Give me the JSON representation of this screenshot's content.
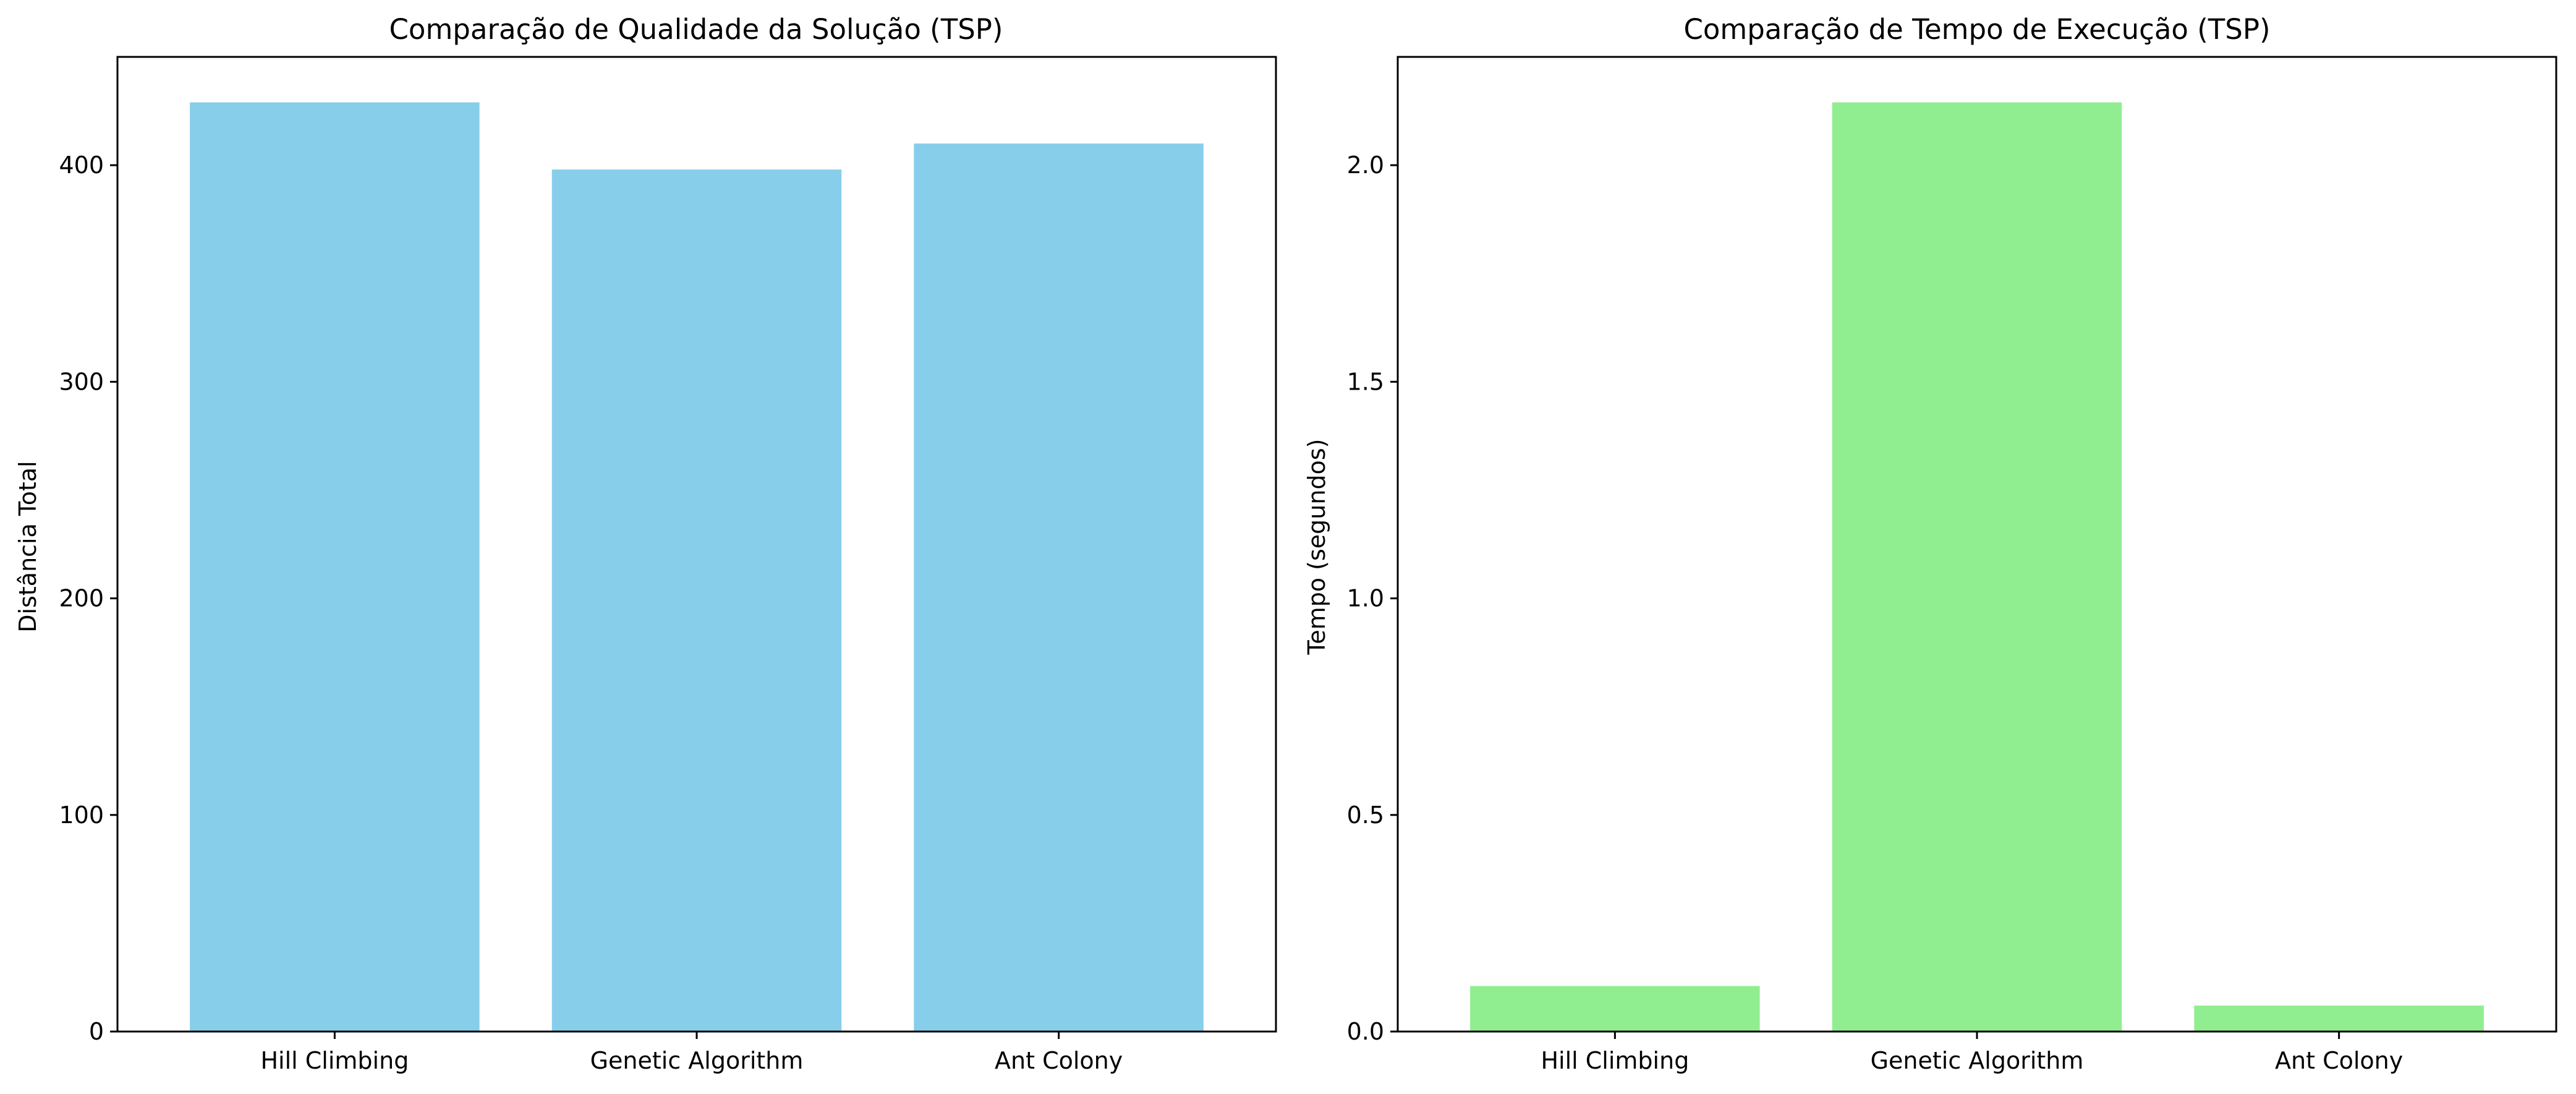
{
  "figure": {
    "background": "#ffffff"
  },
  "chart_data": [
    {
      "type": "bar",
      "title": "Comparação de Qualidade da Solução (TSP)",
      "xlabel": "",
      "ylabel": "Distância Total",
      "categories": [
        "Hill Climbing",
        "Genetic Algorithm",
        "Ant Colony"
      ],
      "values": [
        429,
        398,
        410
      ],
      "ylim": [
        0,
        450
      ],
      "yticks": [
        0,
        100,
        200,
        300,
        400
      ],
      "ytick_labels": [
        "0",
        "100",
        "200",
        "300",
        "400"
      ],
      "color": "#87ceeb",
      "grid": false,
      "legend": "none"
    },
    {
      "type": "bar",
      "title": "Comparação de Tempo de Execução (TSP)",
      "xlabel": "",
      "ylabel": "Tempo (segundos)",
      "categories": [
        "Hill Climbing",
        "Genetic Algorithm",
        "Ant Colony"
      ],
      "values": [
        0.105,
        2.145,
        0.06
      ],
      "ylim": [
        0,
        2.25
      ],
      "yticks": [
        0,
        0.5,
        1.0,
        1.5,
        2.0
      ],
      "ytick_labels": [
        "0.0",
        "0.5",
        "1.0",
        "1.5",
        "2.0"
      ],
      "color": "#90ee90",
      "grid": false,
      "legend": "none"
    }
  ]
}
